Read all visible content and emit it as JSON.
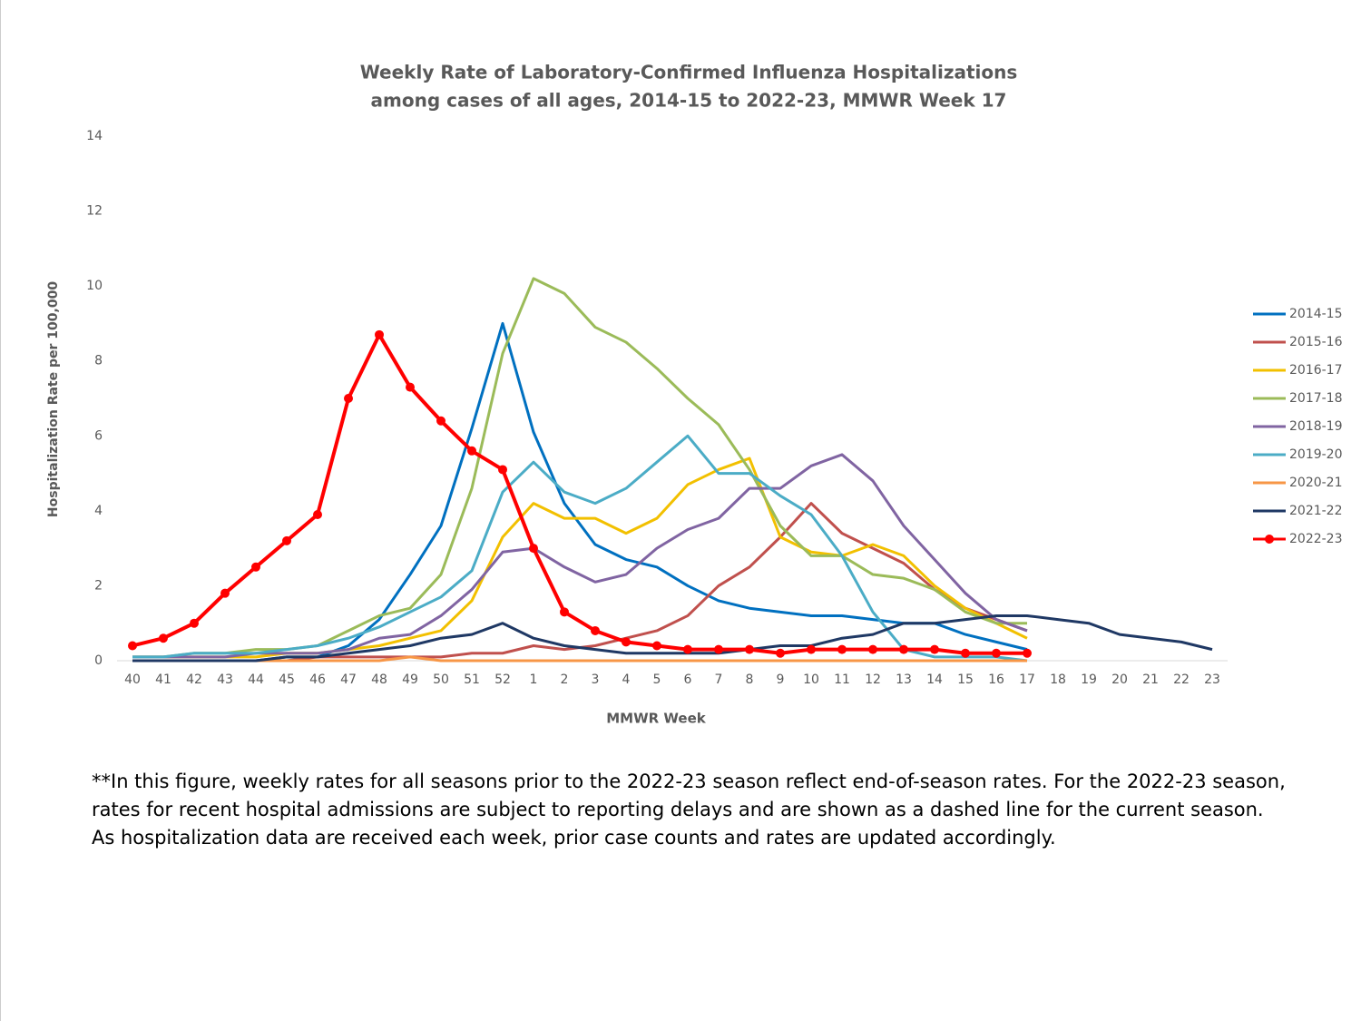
{
  "chart_data": {
    "type": "line",
    "title": [
      "Weekly Rate of Laboratory-Confirmed Influenza Hospitalizations",
      "among cases of all ages, 2014-15 to 2022-23, MMWR Week 17"
    ],
    "x_label": "MMWR Week",
    "y_label": "Hospitalization Rate per 100,000",
    "categories": [
      "40",
      "41",
      "42",
      "43",
      "44",
      "45",
      "46",
      "47",
      "48",
      "49",
      "50",
      "51",
      "52",
      "1",
      "2",
      "3",
      "4",
      "5",
      "6",
      "7",
      "8",
      "9",
      "10",
      "11",
      "12",
      "13",
      "14",
      "15",
      "16",
      "17",
      "18",
      "19",
      "20",
      "21",
      "22",
      "23"
    ],
    "ylim": [
      0,
      14
    ],
    "yticks": [
      0,
      2,
      4,
      6,
      8,
      10,
      12,
      14
    ],
    "grid": false,
    "legend": "right",
    "series": [
      {
        "name": "2014-15",
        "color": "#0070c0",
        "values": [
          0,
          0,
          0,
          0,
          0,
          0.1,
          0.1,
          0.4,
          1.1,
          2.3,
          3.6,
          6.2,
          9.0,
          6.1,
          4.2,
          3.1,
          2.7,
          2.5,
          2.0,
          1.6,
          1.4,
          1.3,
          1.2,
          1.2,
          1.1,
          1.0,
          1.0,
          0.7,
          0.5,
          0.3,
          null,
          null,
          null,
          null,
          null,
          null
        ]
      },
      {
        "name": "2015-16",
        "color": "#c0504d",
        "values": [
          0,
          0,
          0,
          0,
          0,
          0,
          0.1,
          0.1,
          0.1,
          0.1,
          0.1,
          0.2,
          0.2,
          0.4,
          0.3,
          0.4,
          0.6,
          0.8,
          1.2,
          2.0,
          2.5,
          3.3,
          4.2,
          3.4,
          3.0,
          2.6,
          1.9,
          1.4,
          1.1,
          0.8,
          null,
          null,
          null,
          null,
          null,
          null
        ]
      },
      {
        "name": "2016-17",
        "color": "#f2c000",
        "values": [
          0.1,
          0.1,
          0.1,
          0.1,
          0.1,
          0.2,
          0.2,
          0.3,
          0.4,
          0.6,
          0.8,
          1.6,
          3.3,
          4.2,
          3.8,
          3.8,
          3.4,
          3.8,
          4.7,
          5.1,
          5.4,
          3.3,
          2.9,
          2.8,
          3.1,
          2.8,
          2.0,
          1.4,
          1.0,
          0.6,
          null,
          null,
          null,
          null,
          null,
          null
        ]
      },
      {
        "name": "2017-18",
        "color": "#9bbb59",
        "values": [
          0.1,
          0.1,
          0.2,
          0.2,
          0.3,
          0.3,
          0.4,
          0.8,
          1.2,
          1.4,
          2.3,
          4.6,
          8.2,
          10.2,
          9.8,
          8.9,
          8.5,
          7.8,
          7.0,
          6.3,
          5.1,
          3.6,
          2.8,
          2.8,
          2.3,
          2.2,
          1.9,
          1.3,
          1.0,
          1.0,
          null,
          null,
          null,
          null,
          null,
          null
        ]
      },
      {
        "name": "2018-19",
        "color": "#8064a2",
        "values": [
          0.1,
          0.1,
          0.1,
          0.1,
          0.2,
          0.2,
          0.2,
          0.3,
          0.6,
          0.7,
          1.2,
          1.9,
          2.9,
          3.0,
          2.5,
          2.1,
          2.3,
          3.0,
          3.5,
          3.8,
          4.6,
          4.6,
          5.2,
          5.5,
          4.8,
          3.6,
          2.7,
          1.8,
          1.1,
          0.8,
          null,
          null,
          null,
          null,
          null,
          null
        ]
      },
      {
        "name": "2019-20",
        "color": "#4bacc6",
        "values": [
          0.1,
          0.1,
          0.2,
          0.2,
          0.2,
          0.3,
          0.4,
          0.6,
          0.9,
          1.3,
          1.7,
          2.4,
          4.5,
          5.3,
          4.5,
          4.2,
          4.6,
          5.3,
          6.0,
          5.0,
          5.0,
          4.4,
          3.9,
          2.8,
          1.3,
          0.3,
          0.1,
          0.1,
          0.1,
          0,
          null,
          null,
          null,
          null,
          null,
          null
        ]
      },
      {
        "name": "2020-21",
        "color": "#f79646",
        "values": [
          0,
          0,
          0,
          0,
          0,
          0,
          0,
          0,
          0,
          0.1,
          0,
          0,
          0,
          0,
          0,
          0,
          0,
          0,
          0,
          0,
          0,
          0,
          0,
          0,
          0,
          0,
          0,
          0,
          0,
          0,
          null,
          null,
          null,
          null,
          null,
          null
        ]
      },
      {
        "name": "2021-22",
        "color": "#1f3864",
        "values": [
          0,
          0,
          0,
          0,
          0,
          0.1,
          0.1,
          0.2,
          0.3,
          0.4,
          0.6,
          0.7,
          1.0,
          0.6,
          0.4,
          0.3,
          0.2,
          0.2,
          0.2,
          0.2,
          0.3,
          0.4,
          0.4,
          0.6,
          0.7,
          1.0,
          1.0,
          1.1,
          1.2,
          1.2,
          1.1,
          1.0,
          0.7,
          0.6,
          0.5,
          0.3
        ]
      },
      {
        "name": "2022-23",
        "color": "#ff0000",
        "marker": "circle",
        "values": [
          0.4,
          0.6,
          1.0,
          1.8,
          2.5,
          3.2,
          3.9,
          7.0,
          8.7,
          7.3,
          6.4,
          5.6,
          5.1,
          3.0,
          1.3,
          0.8,
          0.5,
          0.4,
          0.3,
          0.3,
          0.3,
          0.2,
          0.3,
          0.3,
          0.3,
          0.3,
          0.3,
          0.2,
          0.2,
          0.2,
          null,
          null,
          null,
          null,
          null,
          null
        ]
      }
    ]
  },
  "footnote": "**In this figure, weekly rates for all seasons prior to the 2022-23 season reflect end-of-season rates. For the 2022-23 season, rates for recent hospital admissions are subject to reporting delays and are shown as a dashed line for the current season. As hospitalization data are received each week, prior case counts and rates are updated accordingly."
}
